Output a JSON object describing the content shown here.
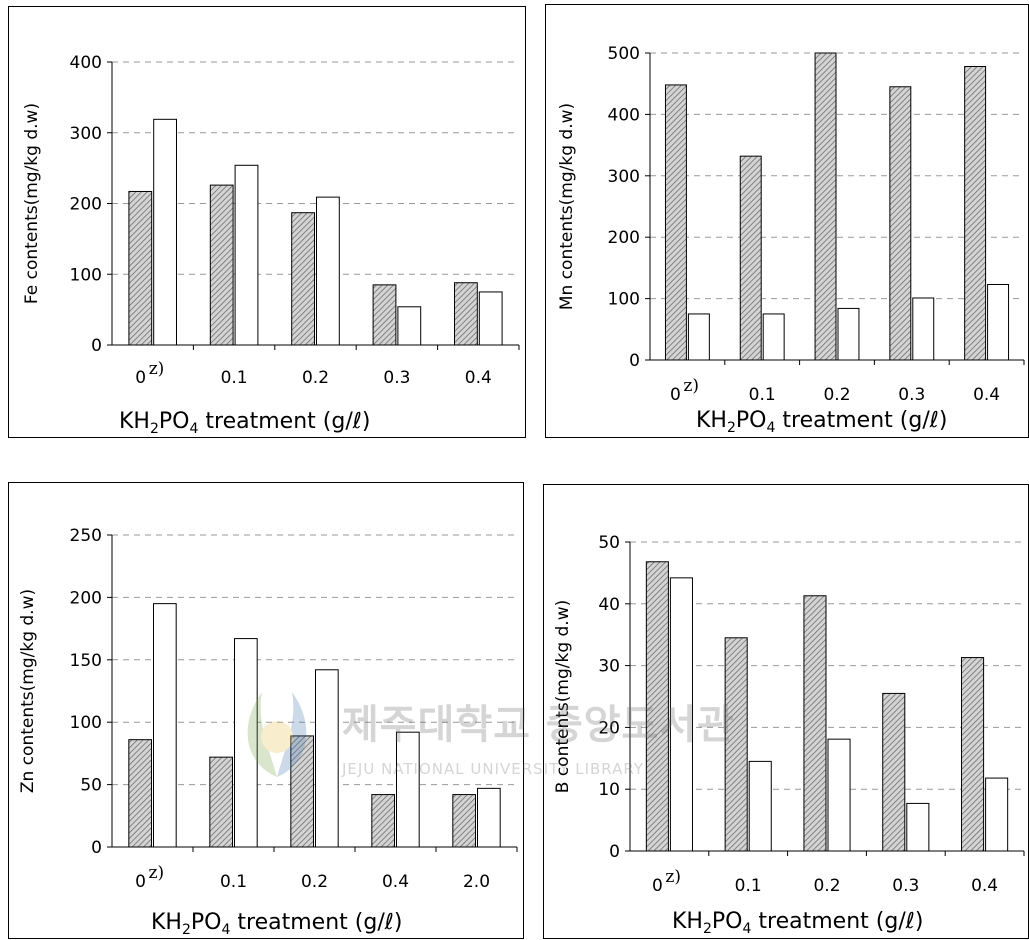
{
  "colors": {
    "hatched_bar": "#b0b0b0",
    "open_bar": "#ffffff",
    "grid": "#999999"
  },
  "watermark": {
    "korean": "제주대학교 중앙도서관",
    "english": "JEJU NATIONAL UNIVERSITY LIBRARY"
  },
  "chart_data": [
    {
      "type": "bar",
      "ylabel": "Fe contents(mg/kg d.w)",
      "xlabel_main": "KH",
      "xlabel_sub1": "2",
      "xlabel_mid": "PO",
      "xlabel_sub2": "4",
      "xlabel_tail": " treatment (g/ℓ)",
      "first_tick_note": "z)",
      "categories": [
        "0",
        "0.1",
        "0.2",
        "0.3",
        "0.4"
      ],
      "ylim": [
        0,
        400
      ],
      "yticks": [
        0,
        100,
        200,
        300,
        400
      ],
      "grid": true,
      "series": [
        {
          "style": "hatched",
          "values": [
            217,
            226,
            187,
            85,
            88
          ]
        },
        {
          "style": "open",
          "values": [
            319,
            254,
            209,
            54,
            75
          ]
        }
      ]
    },
    {
      "type": "bar",
      "ylabel": "Mn contents(mg/kg d.w)",
      "xlabel_main": "KH",
      "xlabel_sub1": "2",
      "xlabel_mid": "PO",
      "xlabel_sub2": "4",
      "xlabel_tail": " treatment (g/ℓ)",
      "first_tick_note": "z)",
      "categories": [
        "0",
        "0.1",
        "0.2",
        "0.3",
        "0.4"
      ],
      "ylim": [
        0,
        500
      ],
      "yticks": [
        0,
        100,
        200,
        300,
        400,
        500
      ],
      "grid": true,
      "series": [
        {
          "style": "hatched",
          "values": [
            448,
            332,
            500,
            445,
            478
          ]
        },
        {
          "style": "open",
          "values": [
            75,
            75,
            84,
            101,
            123
          ]
        }
      ]
    },
    {
      "type": "bar",
      "ylabel": "Zn contents(mg/kg d.w)",
      "xlabel_main": "KH",
      "xlabel_sub1": "2",
      "xlabel_mid": "PO",
      "xlabel_sub2": "4",
      "xlabel_tail": " treatment (g/ℓ)",
      "first_tick_note": "z)",
      "categories": [
        "0",
        "0.1",
        "0.2",
        "0.4",
        "2.0"
      ],
      "ylim": [
        0,
        250
      ],
      "yticks": [
        0,
        50,
        100,
        150,
        200,
        250
      ],
      "grid": true,
      "series": [
        {
          "style": "hatched",
          "values": [
            86,
            72,
            89,
            42,
            42
          ]
        },
        {
          "style": "open",
          "values": [
            195,
            167,
            142,
            92,
            47
          ]
        }
      ]
    },
    {
      "type": "bar",
      "ylabel": "B contents(mg/kg d.w)",
      "xlabel_main": "KH",
      "xlabel_sub1": "2",
      "xlabel_mid": "PO",
      "xlabel_sub2": "4",
      "xlabel_tail": " treatment (g/ℓ)",
      "first_tick_note": "z)",
      "categories": [
        "0",
        "0.1",
        "0.2",
        "0.3",
        "0.4"
      ],
      "ylim": [
        0,
        50
      ],
      "yticks": [
        0,
        10,
        20,
        30,
        40,
        50
      ],
      "grid": true,
      "series": [
        {
          "style": "hatched",
          "values": [
            46.8,
            34.5,
            41.3,
            25.5,
            31.3
          ]
        },
        {
          "style": "open",
          "values": [
            44.2,
            14.5,
            18.1,
            7.7,
            11.8
          ]
        }
      ]
    }
  ]
}
